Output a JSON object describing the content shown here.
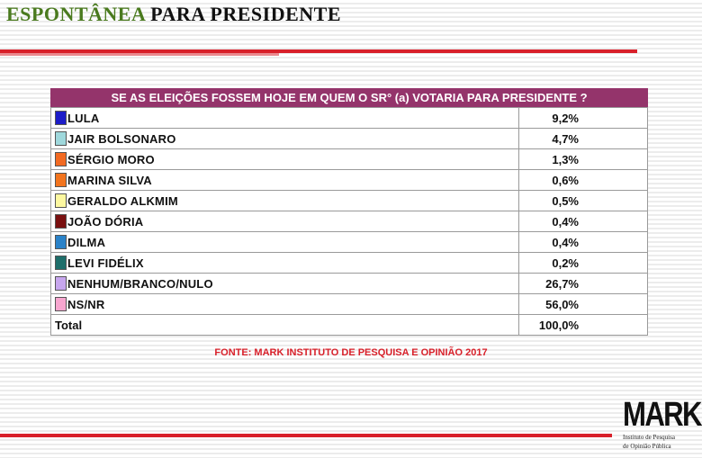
{
  "header": {
    "title_part1": "ESPONTÂNEA",
    "title_part2": "PARA PRESIDENTE"
  },
  "table": {
    "question": "SE AS ELEIÇÕES FOSSEM HOJE EM QUEM O SR° (a) VOTARIA PARA PRESIDENTE ?",
    "total_label": "Total",
    "total_value": "100,0%"
  },
  "source": "FONTE: MARK INSTITUTO DE PESQUISA E OPINIÃO 2017",
  "logo": {
    "name": "MARK",
    "line1": "Instituto de Pesquisa",
    "line2": "de Opinião Pública"
  },
  "colors": {
    "header_bg": "#94346b",
    "accent_red": "#d8202a",
    "title_green": "#4a7a1e"
  },
  "chart_data": {
    "type": "table",
    "title": "SE AS ELEIÇÕES FOSSEM HOJE EM QUEM O SR° (a) VOTARIA PARA PRESIDENTE ?",
    "unit": "%",
    "rows": [
      {
        "label": "LULA",
        "value": 9.2,
        "display": "9,2%",
        "color": "#1c1cc8"
      },
      {
        "label": "JAIR BOLSONARO",
        "value": 4.7,
        "display": "4,7%",
        "color": "#9fd8dc"
      },
      {
        "label": "SÉRGIO MORO",
        "value": 1.3,
        "display": "1,3%",
        "color": "#f26a22"
      },
      {
        "label": "MARINA SILVA",
        "value": 0.6,
        "display": "0,6%",
        "color": "#f2741e"
      },
      {
        "label": "GERALDO ALKMIM",
        "value": 0.5,
        "display": "0,5%",
        "color": "#fdf8a0"
      },
      {
        "label": "JOÃO DÓRIA",
        "value": 0.4,
        "display": "0,4%",
        "color": "#7a1010"
      },
      {
        "label": "DILMA",
        "value": 0.4,
        "display": "0,4%",
        "color": "#2a82c8"
      },
      {
        "label": "LEVI FIDÉLIX",
        "value": 0.2,
        "display": "0,2%",
        "color": "#1e6e6a"
      },
      {
        "label": "NENHUM/BRANCO/NULO",
        "value": 26.7,
        "display": "26,7%",
        "color": "#c7a6ee"
      },
      {
        "label": "NS/NR",
        "value": 56.0,
        "display": "56,0%",
        "color": "#f7a6cf"
      }
    ],
    "total": {
      "label": "Total",
      "value": 100.0,
      "display": "100,0%"
    }
  }
}
